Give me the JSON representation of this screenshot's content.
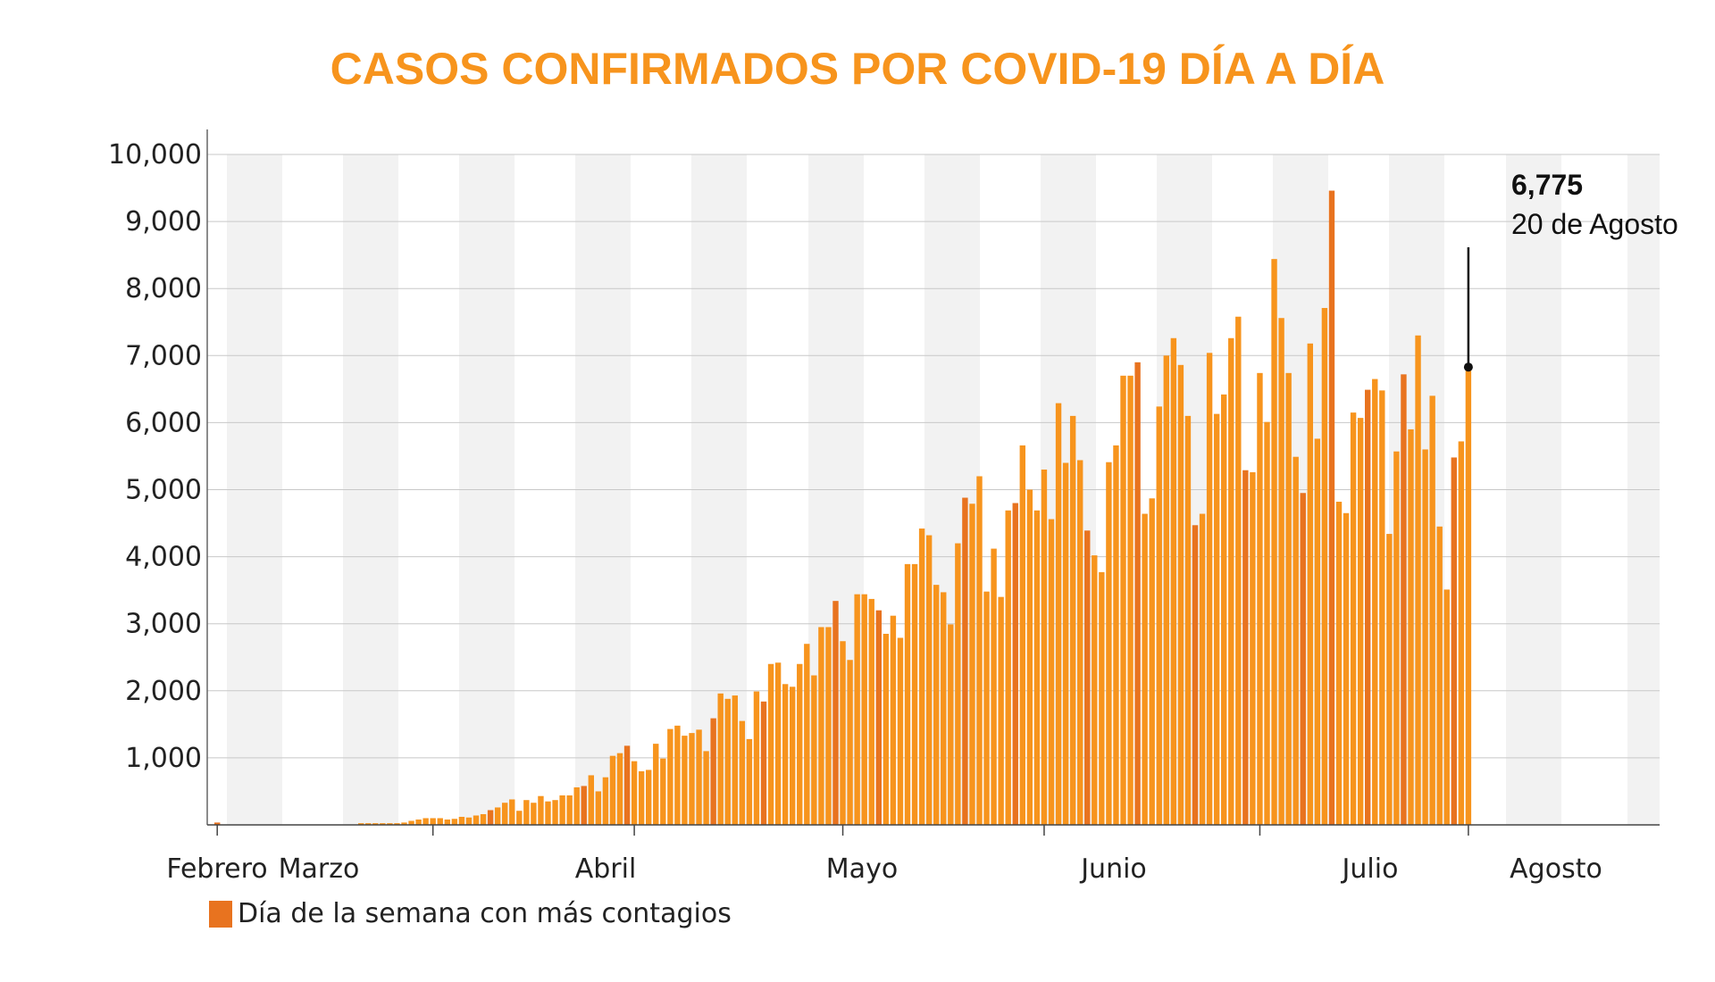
{
  "chart_data": {
    "type": "bar",
    "title": "CASOS CONFIRMADOS POR COVID-19 DÍA A DÍA",
    "ylim": [
      0,
      10000
    ],
    "yticks": [
      "10,000",
      "9,000",
      "8,000",
      "7,000",
      "6,000",
      "5,000",
      "4,000",
      "3,000",
      "2,000",
      "1,000"
    ],
    "ytick_values": [
      10000,
      9000,
      8000,
      7000,
      6000,
      5000,
      4000,
      3000,
      2000,
      1000
    ],
    "month_labels": [
      "Febrero",
      "Marzo",
      "Abril",
      "Mayo",
      "Junio",
      "Julio",
      "Agosto"
    ],
    "grid": true,
    "colors": {
      "bar": "#f7941d",
      "highlight": "#e8731f",
      "band": "#f2f2f2",
      "title": "#f7941d"
    },
    "legend": {
      "label": "Día de la semana con más contagios",
      "color": "#e8731f",
      "position": "bottom-left"
    },
    "annotation": {
      "value": "6,775",
      "label": "20 de Agosto"
    },
    "series": [
      {
        "values": [
          35,
          0,
          0,
          0,
          0,
          0,
          0,
          0,
          0,
          0,
          0,
          0,
          0,
          0,
          0,
          0,
          0,
          0,
          0,
          0,
          25,
          25,
          25,
          25,
          25,
          25,
          35,
          60,
          80,
          100,
          100,
          100,
          80,
          90,
          120,
          110,
          140,
          160,
          220,
          260,
          330,
          380,
          210,
          370,
          330,
          430,
          350,
          370,
          440,
          440,
          560,
          580,
          740,
          500,
          710,
          1030,
          1070,
          1180,
          950,
          800,
          820,
          1210,
          990,
          1430,
          1480,
          1330,
          1370,
          1420,
          1100,
          1590,
          1960,
          1880,
          1930,
          1550,
          1280,
          1990,
          1840,
          2400,
          2420,
          2100,
          2060,
          2400,
          2700,
          2230,
          2950,
          2950,
          3340,
          2740,
          2460,
          3440,
          3440,
          3370,
          3200,
          2850,
          3120,
          2790,
          3890,
          3890,
          4420,
          4320,
          3580,
          3470,
          2990,
          4200,
          4880,
          4790,
          5200,
          3480,
          4120,
          3400,
          4690,
          4800,
          5660,
          5000,
          4690,
          5300,
          4560,
          6290,
          5400,
          6100,
          5440,
          4390,
          4020,
          3770,
          5410,
          5660,
          6700,
          6700,
          6900,
          4640,
          4870,
          6240,
          7000,
          7260,
          6860,
          6100,
          4470,
          4640,
          7040,
          6130,
          6420,
          7260,
          7580,
          5290,
          5260,
          6740,
          6010,
          8440,
          7560,
          6740,
          5490,
          4950,
          7180,
          5760,
          7710,
          9460,
          4820,
          4650,
          6150,
          6070,
          6490,
          6650,
          6480,
          4340,
          5570,
          6720,
          5900,
          7300,
          5600,
          6400,
          4450,
          3510,
          5480,
          5720,
          6775
        ]
      }
    ],
    "highlight_indices": [
      0,
      38,
      51,
      57,
      69,
      76,
      86,
      92,
      104,
      111,
      121,
      128,
      136,
      143,
      151,
      155,
      160,
      165,
      172
    ]
  }
}
